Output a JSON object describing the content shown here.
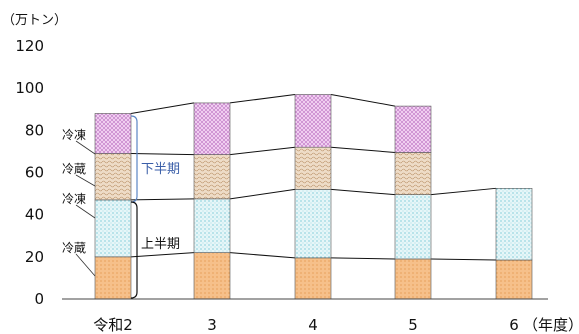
{
  "chart_data": {
    "type": "bar",
    "stacked": true,
    "unit": "（万トン）",
    "x_unit": "（年度）",
    "categories": [
      "令和2",
      "3",
      "4",
      "5",
      "6"
    ],
    "ylim": [
      0,
      120
    ],
    "yticks": [
      "0",
      "20",
      "40",
      "60",
      "80",
      "100",
      "120"
    ],
    "grid": false,
    "series": [
      {
        "name": "上半期 冷蔵",
        "values": [
          20,
          22,
          19.5,
          19,
          18.5
        ],
        "fill": "#f6c08a",
        "pattern": "dots"
      },
      {
        "name": "上半期 冷凍",
        "values": [
          27,
          25.5,
          32.5,
          30.5,
          34
        ],
        "fill": "#d9f0f4",
        "pattern": "dots"
      },
      {
        "name": "下半期 冷蔵",
        "values": [
          22,
          21,
          20,
          20,
          null
        ],
        "fill": "#e8d5be",
        "pattern": "waves"
      },
      {
        "name": "下半期 冷凍",
        "values": [
          19,
          24.5,
          25,
          22,
          null
        ],
        "fill": "#e6b8e6",
        "pattern": "checks"
      }
    ],
    "annotations": {
      "first_half_label": "上半期",
      "second_half_label": "下半期",
      "frozen": "冷凍",
      "chilled": "冷蔵"
    },
    "colors": {
      "second_half_text": "#3a5ea8",
      "bracket": "#5b86c5"
    }
  }
}
